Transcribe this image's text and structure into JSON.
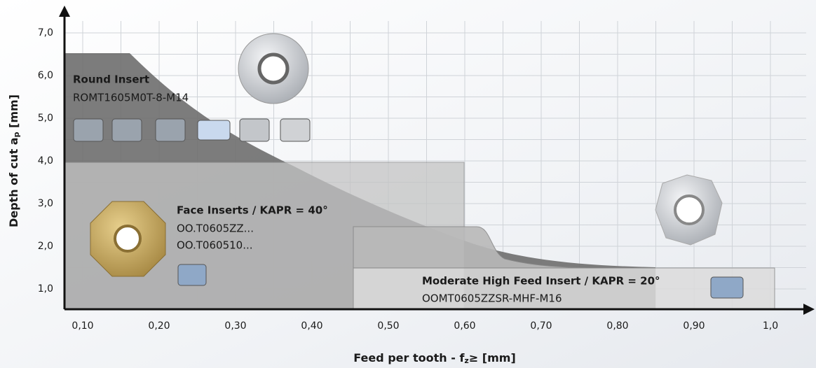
{
  "axes": {
    "y_title": {
      "text": "Depth of cut  a",
      "sub": "p",
      "suffix": " [mm]"
    },
    "x_title": {
      "text": "Feed per tooth - f",
      "sub": "z",
      "suffix": "≥ [mm]"
    },
    "xticks": [
      "0,10",
      "0,20",
      "0,30",
      "0,40",
      "0,50",
      "0,60",
      "0,70",
      "0,80",
      "0,90",
      "1,0"
    ],
    "yticks": [
      "7,0",
      "6,0",
      "5,0",
      "4,0",
      "3,0",
      "2,0",
      "1,0"
    ]
  },
  "regions": [
    {
      "title": "Round Insert",
      "codes": [
        "ROMT1605M0T-8-M14"
      ]
    },
    {
      "title": "Face Inserts / KAPR = 40°",
      "codes": [
        "OO.T0605ZZ...",
        "OO.T060510..."
      ]
    },
    {
      "title": "Moderate High Feed Insert / KAPR = 20°",
      "codes": [
        "OOMT0605ZZSR-MHF-M16"
      ]
    }
  ]
}
